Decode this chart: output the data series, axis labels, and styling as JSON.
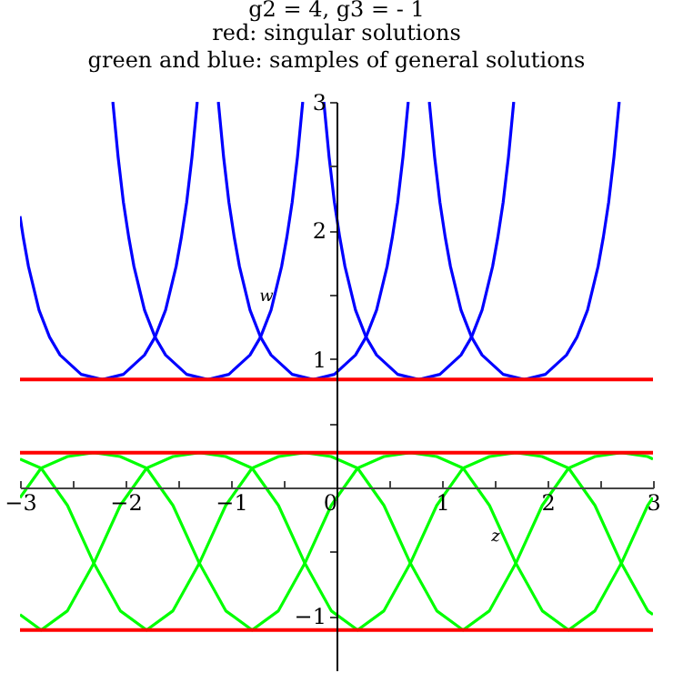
{
  "chart_data": {
    "type": "line",
    "title": "g2 = 4, g3 = - 1",
    "subtitle": "red: singular solutions\ngreen and blue: samples of general solutions",
    "xlabel": "z",
    "ylabel": "w",
    "xlim": [
      -3,
      3
    ],
    "ylim": [
      -1.43,
      3
    ],
    "xticks": [
      {
        "value": -3,
        "label": "−3"
      },
      {
        "value": -2.5,
        "label": null
      },
      {
        "value": -2,
        "label": "−2"
      },
      {
        "value": -1.5,
        "label": null
      },
      {
        "value": -1,
        "label": "−1"
      },
      {
        "value": -0.5,
        "label": null
      },
      0,
      {
        "value": 0.5,
        "label": null
      },
      1,
      {
        "value": 1.5,
        "label": null
      },
      2,
      {
        "value": 2.5,
        "label": null
      },
      3
    ],
    "yticks": [
      {
        "value": -1,
        "label": "−1"
      },
      {
        "value": -0.5,
        "label": null
      },
      {
        "value": 0.5,
        "label": null
      },
      1,
      {
        "value": 1.5,
        "label": null
      },
      2,
      {
        "value": 2.5,
        "label": null
      },
      3
    ],
    "series": [
      {
        "color": "#0000ff",
        "x": [
          -3,
          -2.97,
          -2.92,
          -2.82,
          -2.72,
          -2.62,
          -2.42,
          -2.22,
          -2.02,
          -1.82,
          -1.72,
          -1.62,
          -1.52,
          -1.47,
          -1.42,
          -1.37,
          -1.32
        ],
        "values": [
          2.11,
          1.95,
          1.72,
          1.38,
          1.17,
          1.03,
          0.88,
          0.84,
          0.88,
          1.03,
          1.17,
          1.38,
          1.72,
          1.95,
          2.22,
          2.57,
          3.0
        ]
      },
      {
        "color": "#0000ff",
        "x": [
          -2.12,
          -2.07,
          -2.02,
          -1.97,
          -1.92,
          -1.82,
          -1.72,
          -1.62,
          -1.42,
          -1.22,
          -1.02,
          -0.82,
          -0.72,
          -0.62,
          -0.52,
          -0.47,
          -0.42,
          -0.37,
          -0.32
        ],
        "values": [
          3.0,
          2.57,
          2.22,
          1.95,
          1.72,
          1.38,
          1.17,
          1.03,
          0.88,
          0.84,
          0.88,
          1.03,
          1.17,
          1.38,
          1.72,
          1.95,
          2.22,
          2.57,
          3.0
        ]
      },
      {
        "color": "#0000ff",
        "x": [
          -1.12,
          -1.07,
          -1.02,
          -0.97,
          -0.92,
          -0.82,
          -0.72,
          -0.62,
          -0.42,
          -0.22,
          -0.02,
          0.18,
          0.28,
          0.38,
          0.48,
          0.53,
          0.58,
          0.63,
          0.68
        ],
        "values": [
          3.0,
          2.57,
          2.22,
          1.95,
          1.72,
          1.38,
          1.17,
          1.03,
          0.88,
          0.84,
          0.88,
          1.03,
          1.17,
          1.38,
          1.72,
          1.95,
          2.22,
          2.57,
          3.0
        ]
      },
      {
        "color": "#0000ff",
        "x": [
          -0.12,
          -0.07,
          -0.02,
          0.03,
          0.08,
          0.18,
          0.28,
          0.38,
          0.58,
          0.78,
          0.98,
          1.18,
          1.28,
          1.38,
          1.48,
          1.53,
          1.58,
          1.63,
          1.68
        ],
        "values": [
          3.0,
          2.57,
          2.22,
          1.95,
          1.72,
          1.38,
          1.17,
          1.03,
          0.88,
          0.84,
          0.88,
          1.03,
          1.17,
          1.38,
          1.72,
          1.95,
          2.22,
          2.57,
          3.0
        ]
      },
      {
        "color": "#0000ff",
        "x": [
          0.88,
          0.93,
          0.98,
          1.03,
          1.08,
          1.18,
          1.28,
          1.38,
          1.58,
          1.78,
          1.98,
          2.18,
          2.28,
          2.38,
          2.48,
          2.53,
          2.58,
          2.63,
          2.68
        ],
        "values": [
          3.0,
          2.57,
          2.22,
          1.95,
          1.72,
          1.38,
          1.17,
          1.03,
          0.88,
          0.84,
          0.88,
          1.03,
          1.17,
          1.38,
          1.72,
          1.95,
          2.22,
          2.57,
          3.0
        ]
      },
      {
        "color": "#00ff00",
        "x": [
          -3,
          -2.8,
          -2.55,
          -2.3,
          -2.05,
          -1.8,
          -1.55,
          -1.3,
          -1.05,
          -0.8,
          -0.55,
          -0.3,
          -0.05,
          0.2,
          0.45,
          0.7,
          0.95,
          1.2,
          1.45,
          1.7,
          1.95,
          2.2,
          2.45,
          2.7,
          2.95,
          3
        ],
        "values": [
          -0.08,
          0.15,
          0.24,
          0.27,
          0.24,
          0.15,
          -0.14,
          -0.59,
          -0.96,
          -1.11,
          -0.96,
          -0.59,
          -0.14,
          0.15,
          0.24,
          0.27,
          0.24,
          0.15,
          -0.14,
          -0.59,
          -0.96,
          -1.11,
          -0.96,
          -0.59,
          -0.14,
          -0.08
        ]
      },
      {
        "color": "#00ff00",
        "x": [
          -3,
          -2.8,
          -2.55,
          -2.3,
          -2.05,
          -1.8,
          -1.55,
          -1.3,
          -1.05,
          -0.8,
          -0.55,
          -0.3,
          -0.05,
          0.2,
          0.45,
          0.7,
          0.95,
          1.2,
          1.45,
          1.7,
          1.95,
          2.2,
          2.45,
          2.7,
          2.95,
          3
        ],
        "values": [
          -0.99,
          -1.11,
          -0.96,
          -0.59,
          -0.14,
          0.15,
          0.24,
          0.27,
          0.24,
          0.15,
          -0.14,
          -0.59,
          -0.96,
          -1.11,
          -0.96,
          -0.59,
          -0.14,
          0.15,
          0.24,
          0.27,
          0.24,
          0.15,
          -0.14,
          -0.59,
          -0.96,
          -0.99
        ]
      },
      {
        "color": "#00ff00",
        "x": [
          -3,
          -2.8,
          -2.55,
          -2.3,
          -2.05,
          -1.8,
          -1.55,
          -1.3,
          -1.05,
          -0.8,
          -0.55,
          -0.3,
          -0.05,
          0.2,
          0.45,
          0.7,
          0.95,
          1.2,
          1.45,
          1.7,
          1.95,
          2.2,
          2.45,
          2.7,
          2.95,
          3
        ],
        "values": [
          0.22,
          0.15,
          -0.14,
          -0.59,
          -0.96,
          -1.11,
          -0.96,
          -0.59,
          -0.14,
          0.15,
          0.24,
          0.27,
          0.24,
          0.15,
          -0.14,
          -0.59,
          -0.96,
          -1.11,
          -0.96,
          -0.59,
          -0.14,
          0.15,
          0.24,
          0.27,
          0.24,
          0.22
        ]
      }
    ],
    "ref_lines": [
      {
        "axis": "y",
        "value": 0.84,
        "color": "#ff0000"
      },
      {
        "axis": "y",
        "value": 0.27,
        "color": "#ff0000"
      },
      {
        "axis": "y",
        "value": -1.11,
        "color": "#ff0000"
      }
    ]
  }
}
